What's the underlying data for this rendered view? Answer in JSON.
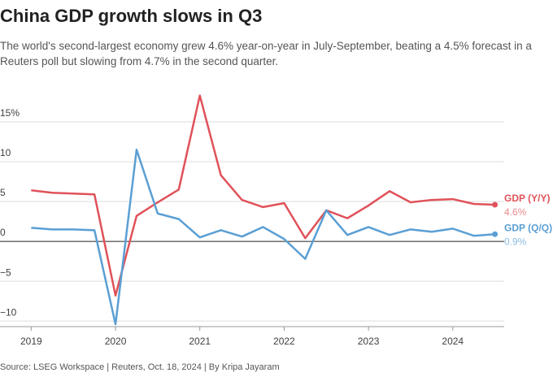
{
  "chart_data": {
    "type": "line",
    "title": "China GDP growth slows in Q3",
    "subtitle": "The world's second-largest economy grew 4.6% year-on-year in July-September, beating a 4.5% forecast in a Reuters poll but slowing from 4.7% in the second quarter.",
    "source": "Source: LSEG Workspace | Reuters, Oct. 18, 2024 | By Kripa Jayaram",
    "x": [
      2019,
      2019.25,
      2019.5,
      2019.75,
      2020,
      2020.25,
      2020.5,
      2020.75,
      2021,
      2021.25,
      2021.5,
      2021.75,
      2022,
      2022.25,
      2022.5,
      2022.75,
      2023,
      2023.25,
      2023.5,
      2023.75,
      2024,
      2024.25,
      2024.5
    ],
    "xlim": [
      2018.63,
      2024.61
    ],
    "xticks": [
      2019,
      2020,
      2021,
      2022,
      2023,
      2024
    ],
    "ylim": [
      -10.7,
      20.4
    ],
    "yticks": [
      {
        "value": -10,
        "label": "−10"
      },
      {
        "value": -5,
        "label": "−5"
      },
      0,
      5,
      10,
      {
        "value": 15,
        "label": "15%"
      }
    ],
    "grid": true,
    "series": [
      {
        "name": "GDP (Y/Y)",
        "color": "#e0525a",
        "label_color": "#e98a8f",
        "values": [
          6.4,
          6.1,
          6.0,
          5.9,
          -6.8,
          3.2,
          4.9,
          6.5,
          18.3,
          8.3,
          5.2,
          4.3,
          4.8,
          0.4,
          3.9,
          2.9,
          4.5,
          6.3,
          4.9,
          5.2,
          5.3,
          4.7,
          4.6
        ],
        "value_labels": [
          null,
          null,
          null,
          null,
          null,
          null,
          null,
          null,
          null,
          null,
          null,
          null,
          null,
          null,
          null,
          null,
          null,
          null,
          null,
          null,
          null,
          null,
          "4.6%"
        ]
      },
      {
        "name": "GDP (Q/Q)",
        "color": "#5a9fd4",
        "label_color": "#8dbde3",
        "values": [
          1.7,
          1.5,
          1.5,
          1.4,
          -10.4,
          11.5,
          3.5,
          2.8,
          0.5,
          1.4,
          0.6,
          1.8,
          0.3,
          -2.2,
          3.9,
          0.8,
          1.8,
          0.8,
          1.5,
          1.2,
          1.6,
          0.7,
          0.9
        ],
        "value_labels": [
          null,
          null,
          null,
          null,
          null,
          null,
          null,
          null,
          null,
          null,
          null,
          null,
          null,
          null,
          null,
          null,
          null,
          null,
          null,
          null,
          null,
          null,
          "0.9%"
        ]
      }
    ]
  }
}
